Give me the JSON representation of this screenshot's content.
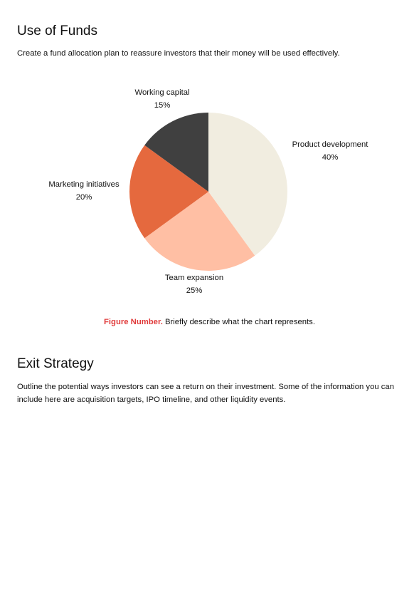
{
  "use_of_funds": {
    "title": "Use of Funds",
    "description": "Create a fund allocation plan to reassure investors that their money will be used effectively."
  },
  "chart_data": {
    "type": "pie",
    "slices": [
      {
        "label": "Product development",
        "value_label": "40%",
        "value": 40,
        "color": "#f1ede0"
      },
      {
        "label": "Team expansion",
        "value_label": "25%",
        "value": 25,
        "color": "#ffbfa4"
      },
      {
        "label": "Marketing initiatives",
        "value_label": "20%",
        "value": 20,
        "color": "#e5693e"
      },
      {
        "label": "Working capital",
        "value_label": "15%",
        "value": 15,
        "color": "#404040"
      }
    ]
  },
  "figure_caption": {
    "number": "Figure Number.",
    "text": " Briefly describe what the chart represents."
  },
  "exit_strategy": {
    "title": "Exit Strategy",
    "description": "Outline the potential ways investors can see a return on their investment. Some of the information you can include here are acquisition targets, IPO timeline, and other liquidity events."
  }
}
